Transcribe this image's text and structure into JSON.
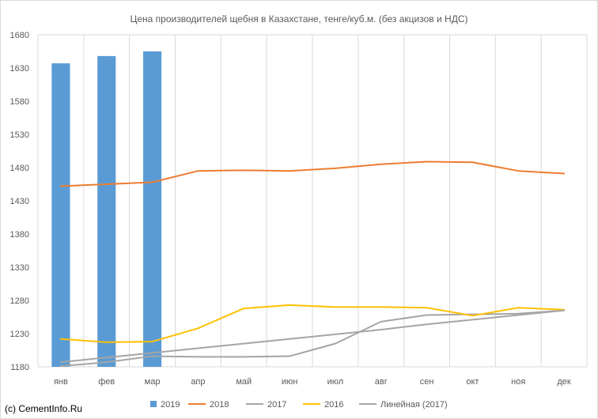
{
  "chart_data": {
    "type": "bar",
    "title": "Цена производителей щебня в Казахстане, тенге/куб.м. (без акцизов и НДС)",
    "categories": [
      "янв",
      "фев",
      "мар",
      "апр",
      "май",
      "июн",
      "июл",
      "авг",
      "сен",
      "окт",
      "ноя",
      "дек"
    ],
    "ylim": [
      1180,
      1680
    ],
    "yticks": [
      1180,
      1230,
      1280,
      1330,
      1380,
      1430,
      1480,
      1530,
      1580,
      1630,
      1680
    ],
    "grid": "vertical",
    "legend_position": "bottom",
    "series": [
      {
        "name": "2019",
        "kind": "bar",
        "color": "#5b9bd5",
        "values": [
          1637,
          1648,
          1655,
          null,
          null,
          null,
          null,
          null,
          null,
          null,
          null,
          null
        ]
      },
      {
        "name": "2018",
        "kind": "line",
        "color": "#ed7d31",
        "values": [
          1452,
          1455,
          1458,
          1475,
          1476,
          1475,
          1479,
          1485,
          1489,
          1488,
          1475,
          1471
        ]
      },
      {
        "name": "2017",
        "kind": "line",
        "color": "#a5a5a5",
        "values": [
          1181,
          1187,
          1196,
          1195,
          1195,
          1196,
          1215,
          1248,
          1258,
          1259,
          1260,
          1265
        ]
      },
      {
        "name": "2016",
        "kind": "line",
        "color": "#ffc000",
        "values": [
          1222,
          1217,
          1218,
          1238,
          1268,
          1273,
          1270,
          1270,
          1269,
          1257,
          1269,
          1266
        ]
      },
      {
        "name": "Линейная (2017)",
        "kind": "trend",
        "color": "#a5a5a5",
        "values": [
          1187,
          1194,
          1201,
          1208,
          1215,
          1222,
          1229,
          1236,
          1244,
          1251,
          1258,
          1265
        ]
      }
    ],
    "legend": [
      {
        "label": "2019",
        "symbol": "bar",
        "color": "#5b9bd5"
      },
      {
        "label": "2018",
        "symbol": "line",
        "color": "#ed7d31"
      },
      {
        "label": "2017",
        "symbol": "line",
        "color": "#a5a5a5"
      },
      {
        "label": "2016",
        "symbol": "line",
        "color": "#ffc000"
      },
      {
        "label": "Линейная (2017)",
        "symbol": "line",
        "color": "#a5a5a5"
      }
    ]
  },
  "source_label": "(c) CementInfo.Ru"
}
